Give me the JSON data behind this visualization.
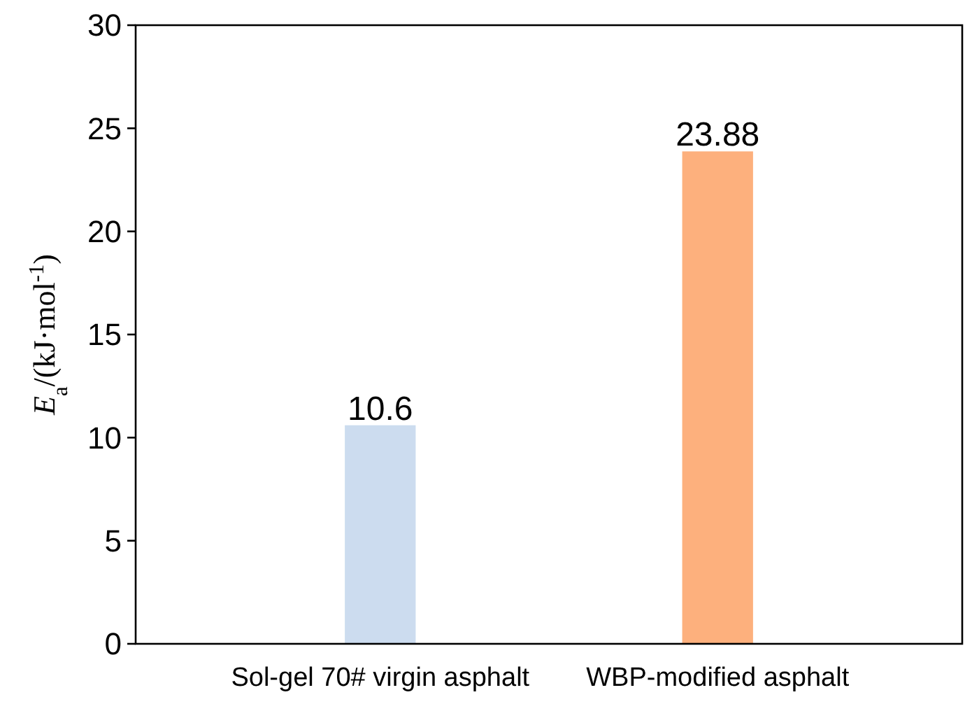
{
  "chart_data": {
    "type": "bar",
    "ylabel": "E$_{a}$/(kJ·mol$^{-1}$)",
    "categories": [
      "Sol-gel 70# virgin asphalt",
      "WBP-modified asphalt"
    ],
    "values": [
      10.6,
      23.88
    ],
    "colors": [
      "#ccdcef",
      "#fdb07d"
    ],
    "ylim": [
      0,
      30
    ],
    "yticks": [
      0,
      5,
      10,
      15,
      20,
      25,
      30
    ],
    "grid": false,
    "data_labels": true
  }
}
